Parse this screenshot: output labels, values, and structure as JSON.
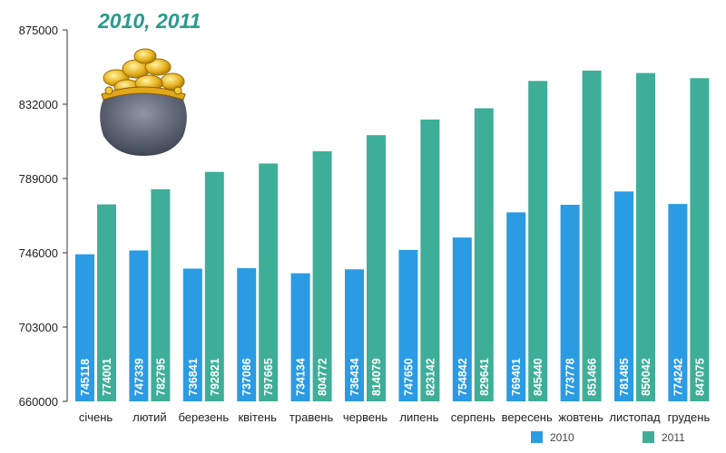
{
  "chart_data": {
    "type": "bar",
    "title": "2010, 2011",
    "categories": [
      "січень",
      "лютий",
      "березень",
      "квітень",
      "травень",
      "червень",
      "липень",
      "серпень",
      "вересень",
      "жовтень",
      "листопад",
      "грудень"
    ],
    "series": [
      {
        "name": "2010",
        "color": "#2b9be3",
        "values": [
          745118,
          747339,
          736841,
          737086,
          734134,
          736434,
          747650,
          754842,
          769401,
          773778,
          781485,
          774242
        ]
      },
      {
        "name": "2011",
        "color": "#3fae98",
        "values": [
          774001,
          782795,
          792821,
          797665,
          804772,
          814079,
          823142,
          829641,
          845440,
          851466,
          850042,
          847075
        ]
      }
    ],
    "ylim": [
      660000,
      875000
    ],
    "yticks": [
      660000,
      703000,
      746000,
      789000,
      832000,
      875000
    ],
    "legend_position": "bottom-right",
    "grid": false,
    "decoration": "coin-purse-icon"
  }
}
